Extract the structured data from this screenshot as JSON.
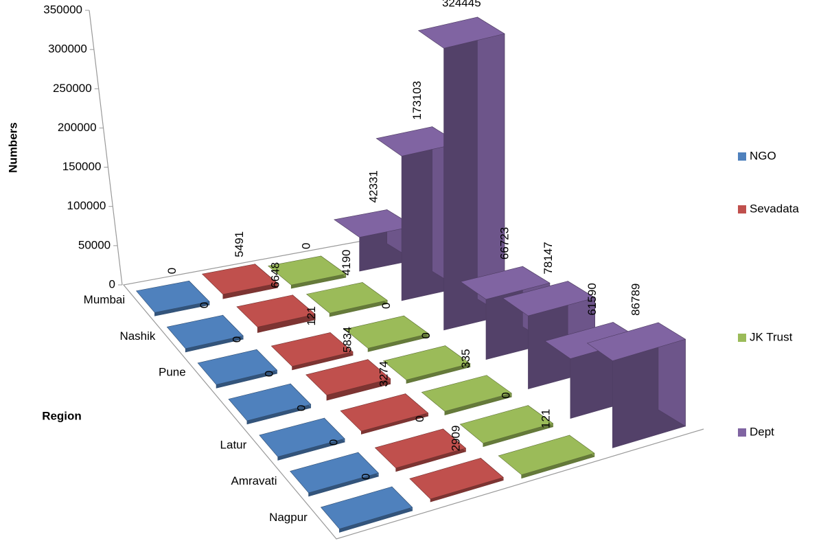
{
  "chart_data": {
    "type": "bar",
    "x_label": "Region",
    "y_label": "Numbers",
    "categories": [
      "Mumbai",
      "Nashik",
      "Pune",
      null,
      "Latur",
      "Amravati",
      "Nagpur"
    ],
    "series": [
      {
        "name": "NGO",
        "color": "#4f81bd",
        "values": [
          0,
          0,
          0,
          0,
          0,
          0,
          0
        ]
      },
      {
        "name": "Sevadata",
        "color": "#c0504d",
        "values": [
          5491,
          6648,
          121,
          5834,
          3274,
          0,
          2909
        ]
      },
      {
        "name": "JK Trust",
        "color": "#9bbb59",
        "values": [
          0,
          4190,
          0,
          0,
          335,
          0,
          121
        ]
      },
      {
        "name": "Dept",
        "color": "#8064a2",
        "values": [
          42331,
          173103,
          324445,
          66723,
          78147,
          61590,
          86789
        ]
      }
    ],
    "ylim": [
      0,
      350000
    ],
    "yticks": [
      0,
      50000,
      100000,
      150000,
      200000,
      250000,
      300000,
      350000
    ]
  }
}
